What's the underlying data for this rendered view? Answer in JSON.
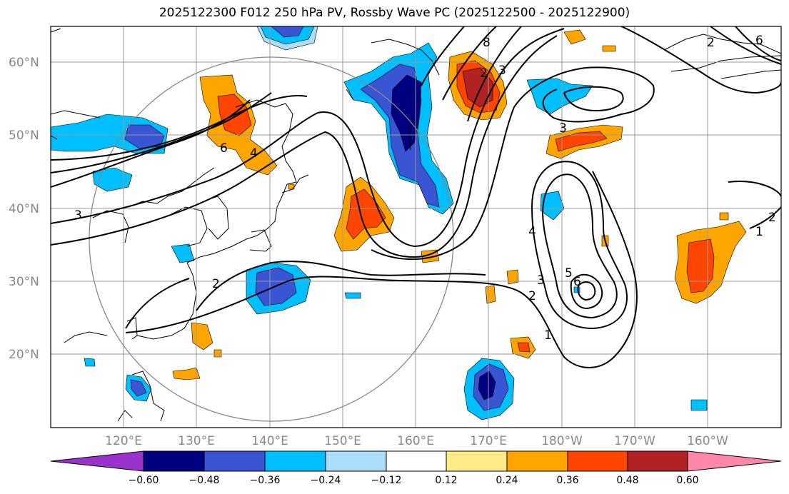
{
  "title": "2025122300 F012 250 hPa PV, Rossby Wave PC (2025122500 - 2025122900)",
  "latitude_labels": [
    "60°N",
    "50°N",
    "40°N",
    "30°N",
    "20°N"
  ],
  "longitude_labels": [
    "120°E",
    "130°E",
    "140°E",
    "150°E",
    "160°E",
    "170°E",
    "180°W",
    "170°W",
    "160°W"
  ],
  "contour_labels": [
    "3",
    "6",
    "4",
    "2",
    "8",
    "2",
    "3",
    "3",
    "4",
    "3",
    "5",
    "6",
    "2",
    "1",
    "2",
    "1",
    "2",
    "6"
  ],
  "colorbar": {
    "tick_labels": [
      "−0.60",
      "−0.48",
      "−0.36",
      "−0.24",
      "−0.12",
      "0.12",
      "0.24",
      "0.36",
      "0.48",
      "0.60"
    ],
    "colors": [
      "#9933cc",
      "#000080",
      "#3a55d3",
      "#00bfff",
      "#aaddf8",
      "#ffffff",
      "#ffea88",
      "#ffa500",
      "#ff4500",
      "#b22222",
      "#ff88aa"
    ]
  },
  "colors": {
    "neg_strong": "#000080",
    "neg_mid": "#3a55d3",
    "neg_light": "#00bfff",
    "neg_pale": "#aaddf8",
    "pos_pale": "#ffea88",
    "pos_light": "#ffa500",
    "pos_mid": "#ff4500",
    "pos_strong": "#b22222"
  }
}
